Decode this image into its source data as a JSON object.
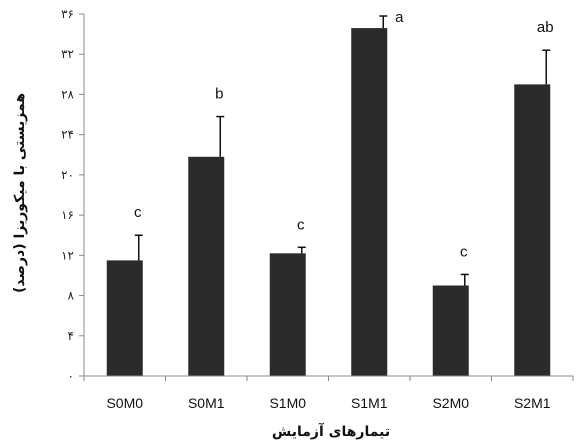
{
  "chart_data": {
    "type": "bar",
    "categories": [
      "S0M0",
      "S0M1",
      "S1M0",
      "S1M1",
      "S2M0",
      "S2M1"
    ],
    "values": [
      11.5,
      21.8,
      12.2,
      34.6,
      9.0,
      29.0
    ],
    "errors": [
      2.5,
      4.0,
      0.6,
      1.2,
      1.1,
      3.4
    ],
    "significance_letters": [
      "c",
      "b",
      "c",
      "a",
      "c",
      "ab"
    ],
    "ylim": [
      0,
      36
    ],
    "yticks": [
      0,
      4,
      8,
      12,
      16,
      20,
      24,
      28,
      32,
      36
    ],
    "ytick_labels": [
      "۰",
      "۴",
      "۸",
      "۱۲",
      "۱۶",
      "۲۰",
      "۲۴",
      "۲۸",
      "۳۲",
      "۳۶"
    ],
    "xlabel": "تیمارهای آزمایش",
    "ylabel": "همزیستی با میکوریزا (درصد)",
    "bar_color": "#2b2b2b",
    "grid": false
  }
}
